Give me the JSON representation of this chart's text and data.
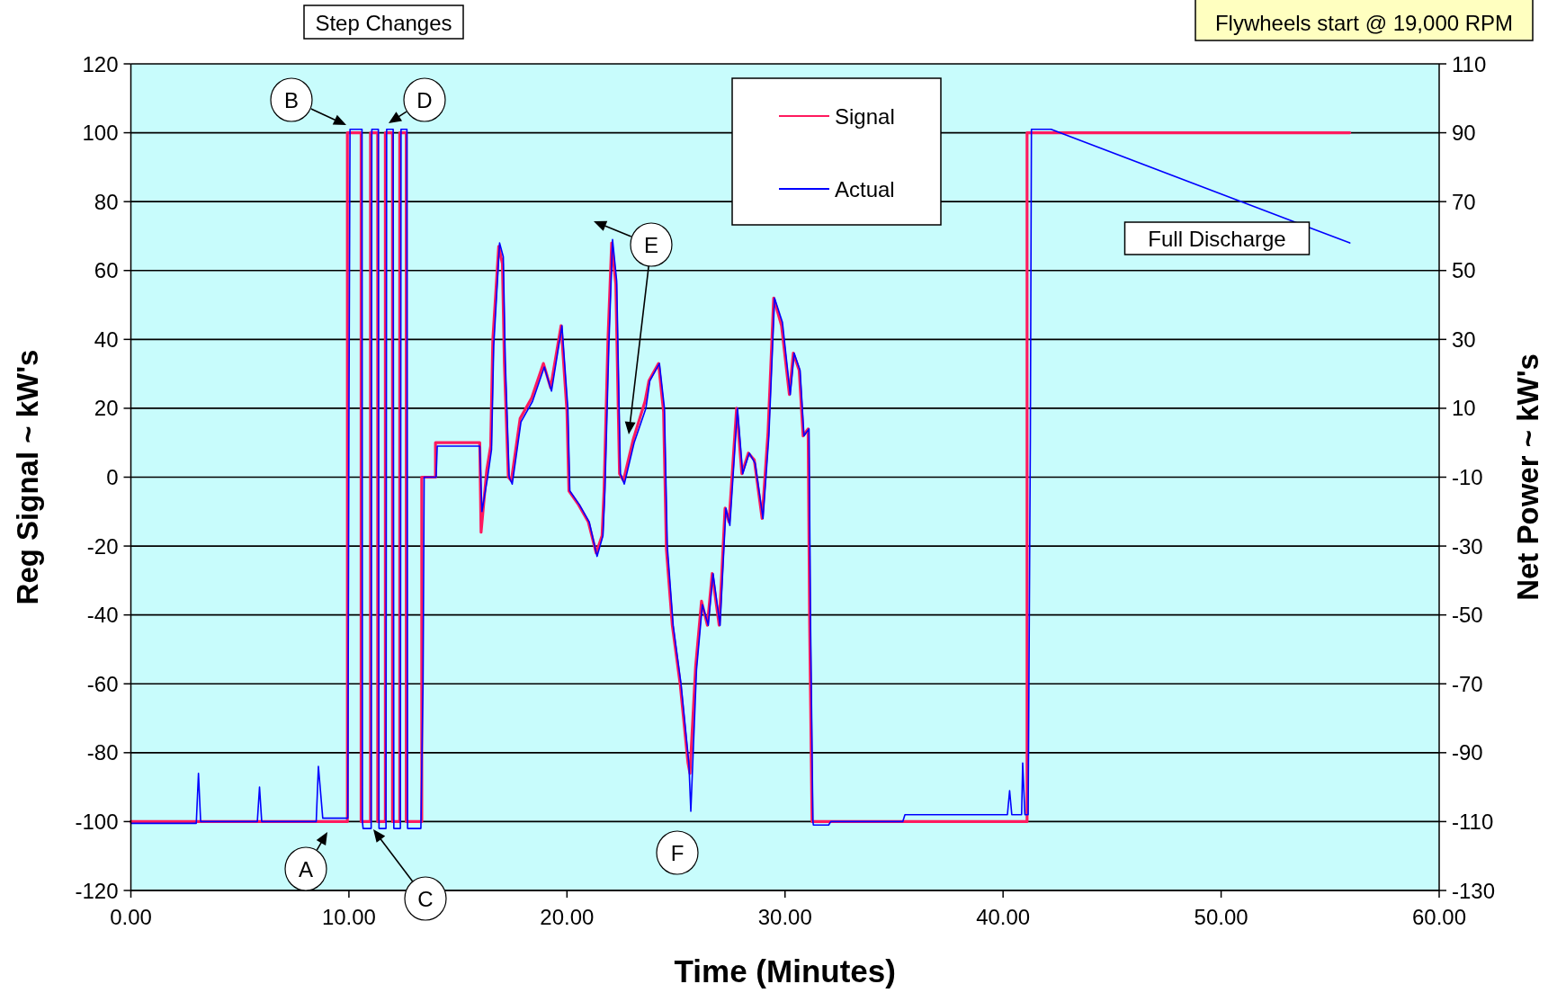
{
  "chart_data": {
    "type": "line",
    "xlabel": "Time (Minutes)",
    "ylabel": "Reg Signal ~ kW's",
    "y2label": "Net Power ~ kW's",
    "xlim": [
      0,
      60
    ],
    "xticks": [
      {
        "value": 0,
        "label": "0.00"
      },
      {
        "value": 10,
        "label": "10.00"
      },
      {
        "value": 20,
        "label": "20.00"
      },
      {
        "value": 30,
        "label": "30.00"
      },
      {
        "value": 40,
        "label": "40.00"
      },
      {
        "value": 50,
        "label": "50.00"
      },
      {
        "value": 60,
        "label": "60.00"
      }
    ],
    "ylim": [
      -120,
      120
    ],
    "yticks": [
      -120,
      -100,
      -80,
      -60,
      -40,
      -20,
      0,
      20,
      40,
      60,
      80,
      100,
      120
    ],
    "y2lim": [
      -130,
      110
    ],
    "y2ticks": [
      -130,
      -110,
      -90,
      -70,
      -50,
      -30,
      -10,
      10,
      30,
      50,
      70,
      90,
      110
    ],
    "grid": "y",
    "legend": "top",
    "line_style": "solid",
    "marker": "none",
    "series": [
      {
        "name": "Signal",
        "color": "#ff1a5e",
        "x": [
          0,
          9.93,
          9.93,
          10.56,
          10.56,
          10.99,
          10.99,
          11.32,
          11.32,
          11.67,
          11.67,
          12.0,
          12.0,
          12.33,
          12.33,
          12.63,
          12.63,
          13.34,
          13.34,
          13.97,
          13.97,
          16.0,
          16.06,
          16.32,
          16.5,
          16.6,
          16.87,
          17.04,
          17.13,
          17.31,
          17.45,
          17.85,
          18.38,
          18.92,
          19.25,
          19.73,
          20.0,
          20.09,
          20.53,
          20.98,
          21.34,
          21.61,
          21.7,
          21.88,
          22.05,
          22.24,
          22.41,
          22.59,
          23.04,
          23.58,
          23.76,
          24.2,
          24.43,
          24.56,
          24.83,
          25.19,
          25.55,
          25.64,
          25.9,
          26.17,
          26.44,
          26.66,
          26.98,
          27.25,
          27.43,
          27.78,
          28.02,
          28.32,
          28.59,
          28.95,
          29.22,
          29.48,
          29.84,
          30.2,
          30.38,
          30.65,
          30.83,
          31.06,
          31.13,
          31.24,
          41.1,
          41.1,
          55.9
        ],
        "values": [
          -100,
          -100,
          100,
          100,
          -100,
          -100,
          100,
          100,
          -100,
          -100,
          100,
          100,
          -100,
          -100,
          100,
          100,
          -100,
          -100,
          0,
          0,
          10,
          10,
          -16,
          2,
          9,
          40,
          67,
          62,
          33,
          0,
          -1,
          17,
          23,
          33,
          26,
          44,
          19,
          -4,
          -8,
          -13,
          -22,
          -17,
          -4,
          40,
          68,
          56,
          1,
          -1,
          11,
          22,
          28,
          33,
          19,
          -21,
          -43,
          -60,
          -83,
          -86,
          -55,
          -36,
          -43,
          -28,
          -43,
          -9,
          -13,
          20,
          1,
          7,
          5,
          -12,
          13,
          52,
          44,
          24,
          36,
          31,
          12,
          14,
          -43,
          -100,
          -100,
          100,
          100
        ]
      },
      {
        "name": "Actual",
        "color": "#0000ff",
        "axis": "y2",
        "x": [
          0,
          3.0,
          3.1,
          3.2,
          5.8,
          5.9,
          6.0,
          8.5,
          8.6,
          8.8,
          9.95,
          10.0,
          10.05,
          10.6,
          10.62,
          10.65,
          11.02,
          11.05,
          11.35,
          11.38,
          11.7,
          11.73,
          12.03,
          12.06,
          12.36,
          12.39,
          12.66,
          12.69,
          13.3,
          13.4,
          13.45,
          14.0,
          14.05,
          16.0,
          16.1,
          16.36,
          16.54,
          16.64,
          16.91,
          17.08,
          17.17,
          17.35,
          17.49,
          17.89,
          18.42,
          18.96,
          19.29,
          19.77,
          20.04,
          20.13,
          20.57,
          21.02,
          21.38,
          21.65,
          21.74,
          21.92,
          22.09,
          22.28,
          22.45,
          22.63,
          23.08,
          23.62,
          23.8,
          24.24,
          24.47,
          24.6,
          24.87,
          25.23,
          25.59,
          25.68,
          25.94,
          26.21,
          26.48,
          26.7,
          27.02,
          27.29,
          27.47,
          27.82,
          28.06,
          28.36,
          28.63,
          28.99,
          29.26,
          29.52,
          29.88,
          30.24,
          30.42,
          30.69,
          30.87,
          31.1,
          31.17,
          31.28,
          31.3,
          32.0,
          32.1,
          35.4,
          35.5,
          40.2,
          40.3,
          40.4,
          40.85,
          40.9,
          41.0,
          41.15,
          41.25,
          41.3,
          42.2,
          55.9
        ],
        "values": [
          -110.5,
          -110.5,
          -96,
          -110,
          -110,
          -100,
          -110,
          -110,
          -94,
          -109,
          -109,
          6,
          91,
          91,
          -110,
          -112,
          -112,
          91,
          91,
          -112,
          -112,
          91,
          91,
          -112,
          -112,
          91,
          91,
          -112,
          -112,
          -70,
          -10,
          -10,
          -1,
          -1,
          -20,
          -10,
          -2,
          28,
          58,
          54,
          24,
          -10,
          -12,
          6,
          12,
          22,
          15,
          34,
          10,
          -14,
          -18,
          -23,
          -33,
          -27,
          -14,
          28,
          59,
          47,
          -9,
          -12,
          0,
          10,
          18,
          23,
          10,
          -30,
          -53,
          -70,
          -93,
          -107,
          -66,
          -47,
          -53,
          -38,
          -53,
          -19,
          -24,
          10,
          -9,
          -3,
          -6,
          -22,
          2,
          42,
          35,
          14,
          26,
          21,
          2,
          4,
          -52,
          -110,
          -111,
          -111,
          -110,
          -110,
          -108,
          -108,
          -101,
          -108,
          -108,
          -93,
          -108,
          -108,
          0,
          91,
          91,
          58
        ]
      }
    ],
    "annotations": [
      "Step Changes",
      "Flywheels start @ 19,000 RPM",
      "A",
      "B",
      "C",
      "D",
      "E",
      "F",
      "Full Discharge"
    ]
  }
}
